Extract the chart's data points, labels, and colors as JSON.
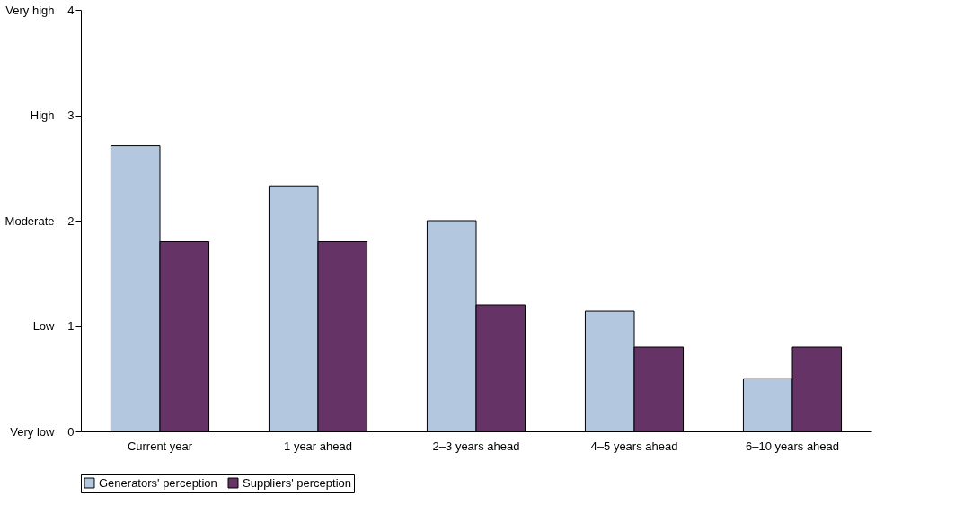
{
  "chart_data": {
    "type": "bar",
    "categories": [
      "Current year",
      "1 year ahead",
      "2–3 years ahead",
      "4–5 years ahead",
      "6–10 years ahead"
    ],
    "series": [
      {
        "name": "Generators' perception",
        "color": "#b3c7de",
        "values": [
          2.71,
          2.33,
          2.0,
          1.14,
          0.5
        ]
      },
      {
        "name": "Suppliers' perception",
        "color": "#663366",
        "values": [
          1.8,
          1.8,
          1.2,
          0.8,
          0.8
        ]
      }
    ],
    "ylim": [
      0,
      4
    ],
    "yticks": [
      0,
      1,
      2,
      3,
      4
    ],
    "annotations": [
      "Very low",
      "Low",
      "Moderate",
      "High",
      "Very high"
    ],
    "grid": false,
    "legend": "bottom"
  }
}
